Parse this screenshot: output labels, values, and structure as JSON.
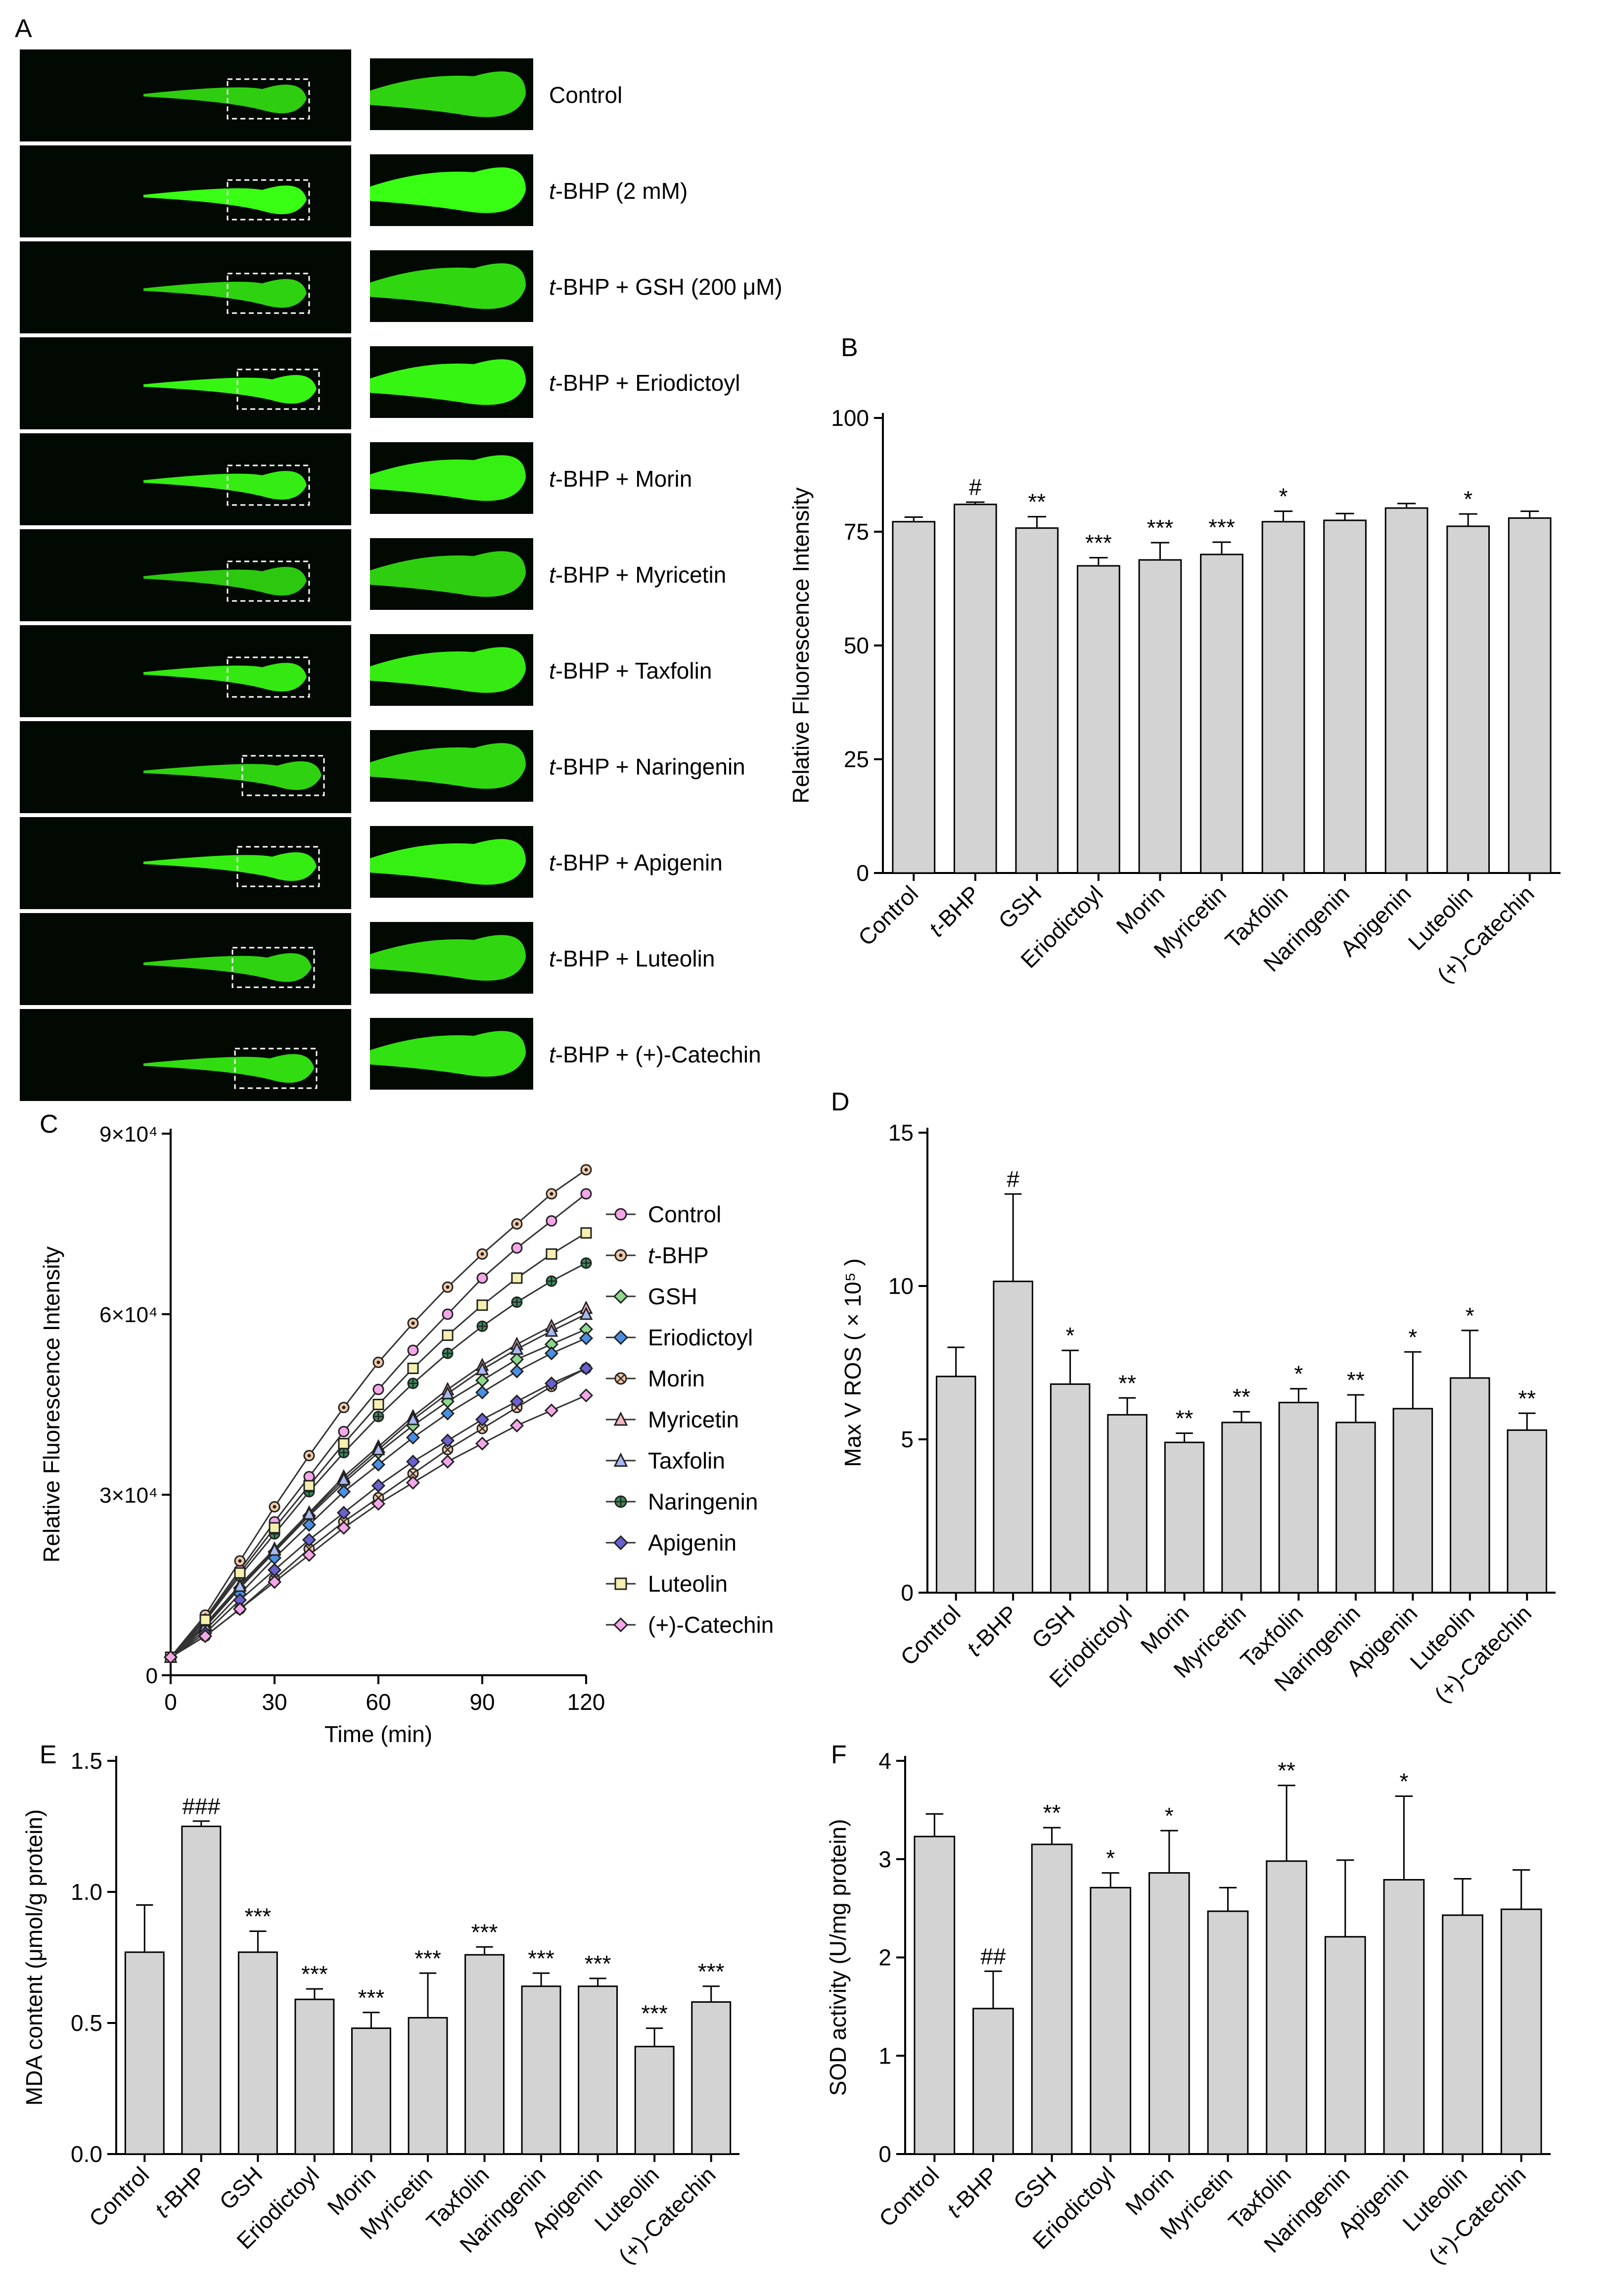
{
  "figure": {
    "panel_letters": [
      "A",
      "B",
      "C",
      "D",
      "E",
      "F"
    ],
    "fluorescence_color": "#39ff14",
    "bar_color": "#d3d3d3"
  },
  "panel_a": {
    "letter": "A",
    "labels": [
      {
        "prefix": "",
        "rest": "Control"
      },
      {
        "prefix": "t",
        "rest": "-BHP (2 mM)"
      },
      {
        "prefix": "t",
        "rest": "-BHP + GSH (200 μM)"
      },
      {
        "prefix": "t",
        "rest": "-BHP + Eriodictoyl"
      },
      {
        "prefix": "t",
        "rest": "-BHP + Morin"
      },
      {
        "prefix": "t",
        "rest": "-BHP + Myricetin"
      },
      {
        "prefix": "t",
        "rest": "-BHP + Taxfolin"
      },
      {
        "prefix": "t",
        "rest": "-BHP + Naringenin"
      },
      {
        "prefix": "t",
        "rest": "-BHP + Apigenin"
      },
      {
        "prefix": "t",
        "rest": "-BHP + Luteolin"
      },
      {
        "prefix": "t",
        "rest": "-BHP + (+)-Catechin"
      }
    ],
    "intensity": [
      0.55,
      1.0,
      0.6,
      0.9,
      0.85,
      0.5,
      0.8,
      0.6,
      0.85,
      0.6,
      0.7
    ]
  },
  "chart_data": [
    {
      "panel": "B",
      "type": "bar",
      "ylabel": "Relative Fluorescence Intensity",
      "ylim": [
        0,
        100
      ],
      "yticks": [
        0,
        25,
        50,
        75,
        100
      ],
      "categories": [
        "Control",
        "t-BHP",
        "GSH",
        "Eriodictoyl",
        "Morin",
        "Myricetin",
        "Taxfolin",
        "Naringenin",
        "Apigenin",
        "Luteolin",
        "(+)-Catechin"
      ],
      "values": [
        77.2,
        81.0,
        75.8,
        67.5,
        68.8,
        70.0,
        77.2,
        77.5,
        80.2,
        76.2,
        78.0
      ],
      "errors": [
        1.0,
        0.5,
        2.5,
        1.8,
        3.8,
        2.7,
        2.3,
        1.5,
        1.0,
        2.7,
        1.5
      ],
      "annotations": [
        "",
        "#",
        "**",
        "***",
        "***",
        "***",
        "*",
        "",
        "",
        "*",
        ""
      ]
    },
    {
      "panel": "C",
      "type": "line",
      "xlabel": "Time (min)",
      "ylabel": "Relative Fluorescence Intensity",
      "xlim": [
        0,
        120
      ],
      "ylim": [
        0,
        90000
      ],
      "xticks": [
        0,
        30,
        60,
        90,
        120
      ],
      "ytick_values": [
        0,
        30000,
        60000,
        90000
      ],
      "ytick_labels": [
        "0",
        "3×10⁴",
        "6×10⁴",
        "9×10⁴"
      ],
      "x": [
        0,
        10,
        20,
        30,
        40,
        50,
        60,
        70,
        80,
        90,
        100,
        110,
        120
      ],
      "series": [
        {
          "name": "Control",
          "italic_prefix": "",
          "rest": "Control",
          "marker": "circle",
          "fill": "#f4a6e8",
          "values": [
            3000,
            9500,
            17500,
            25500,
            33000,
            40500,
            47500,
            54000,
            60000,
            66000,
            71000,
            75500,
            80000
          ]
        },
        {
          "name": "t-BHP",
          "italic_prefix": "t",
          "rest": "-BHP",
          "marker": "circle-dot",
          "fill": "#f2c9a6",
          "values": [
            3000,
            10000,
            19000,
            28000,
            36500,
            44500,
            52000,
            58500,
            64500,
            70000,
            75000,
            80000,
            84000
          ]
        },
        {
          "name": "GSH",
          "italic_prefix": "",
          "rest": "GSH",
          "marker": "diamond",
          "fill": "#8cd98c",
          "values": [
            3000,
            8000,
            14500,
            20500,
            26500,
            32000,
            37000,
            41500,
            45500,
            49000,
            52500,
            55000,
            57500
          ]
        },
        {
          "name": "Eriodictoyl",
          "italic_prefix": "",
          "rest": "Eriodictoyl",
          "marker": "diamond",
          "fill": "#4a90e2",
          "values": [
            3000,
            7500,
            13500,
            19500,
            25000,
            30500,
            35000,
            39500,
            43500,
            47000,
            50500,
            53500,
            56000
          ]
        },
        {
          "name": "Morin",
          "italic_prefix": "",
          "rest": "Morin",
          "marker": "circle-x",
          "fill": "#f2c9a6",
          "values": [
            3000,
            6500,
            11000,
            16000,
            21000,
            25500,
            29500,
            33500,
            37500,
            41000,
            44500,
            48000,
            51000
          ]
        },
        {
          "name": "Myricetin",
          "italic_prefix": "",
          "rest": "Myricetin",
          "marker": "triangle",
          "fill": "#f4b8c0",
          "values": [
            3000,
            8500,
            15000,
            21000,
            27000,
            33000,
            38000,
            43000,
            47500,
            51500,
            55000,
            58000,
            61000
          ]
        },
        {
          "name": "Taxfolin",
          "italic_prefix": "",
          "rest": "Taxfolin",
          "marker": "triangle",
          "fill": "#a8b8f0",
          "values": [
            3000,
            8200,
            14800,
            20800,
            26800,
            32500,
            37500,
            42500,
            46800,
            50800,
            54200,
            57200,
            60000
          ]
        },
        {
          "name": "Naringenin",
          "italic_prefix": "",
          "rest": "Naringenin",
          "marker": "circle-plus",
          "fill": "#3a8a5a",
          "values": [
            3000,
            9000,
            16500,
            23500,
            30500,
            37000,
            43000,
            48500,
            53500,
            58000,
            62000,
            65500,
            68500
          ]
        },
        {
          "name": "Apigenin",
          "italic_prefix": "",
          "rest": "Apigenin",
          "marker": "diamond",
          "fill": "#6a60d0",
          "values": [
            3000,
            7000,
            12500,
            17500,
            22500,
            27000,
            31500,
            35500,
            39000,
            42500,
            45500,
            48500,
            51000
          ]
        },
        {
          "name": "Luteolin",
          "italic_prefix": "",
          "rest": "Luteolin",
          "marker": "square",
          "fill": "#f5f0b0",
          "values": [
            3000,
            9200,
            17000,
            24500,
            31500,
            38500,
            45000,
            51000,
            56500,
            61500,
            66000,
            70000,
            73500
          ]
        },
        {
          "name": "(+)-Catechin",
          "italic_prefix": "",
          "rest": "(+)-Catechin",
          "marker": "diamond",
          "fill": "#f4a6e8",
          "values": [
            3000,
            6500,
            11000,
            15500,
            20000,
            24500,
            28500,
            32000,
            35500,
            38500,
            41500,
            44000,
            46500
          ]
        }
      ]
    },
    {
      "panel": "D",
      "type": "bar",
      "ylabel": "Max V ROS ( × 10⁵ )",
      "ylim": [
        0,
        15
      ],
      "yticks": [
        0,
        5,
        10,
        15
      ],
      "categories": [
        "Control",
        "t-BHP",
        "GSH",
        "Eriodictoyl",
        "Morin",
        "Myricetin",
        "Taxfolin",
        "Naringenin",
        "Apigenin",
        "Luteolin",
        "(+)-Catechin"
      ],
      "values": [
        7.05,
        10.15,
        6.8,
        5.8,
        4.9,
        5.55,
        6.2,
        5.55,
        6.0,
        7.0,
        5.3
      ],
      "errors": [
        0.95,
        2.85,
        1.1,
        0.55,
        0.3,
        0.35,
        0.45,
        0.9,
        1.85,
        1.55,
        0.55
      ],
      "annotations": [
        "",
        "#",
        "*",
        "**",
        "**",
        "**",
        "*",
        "**",
        "*",
        "*",
        "**"
      ]
    },
    {
      "panel": "E",
      "type": "bar",
      "ylabel": "MDA content (μmol/g protein)",
      "ylim": [
        0,
        1.5
      ],
      "yticks": [
        0.0,
        0.5,
        1.0,
        1.5
      ],
      "ytick_labels": [
        "0.0",
        "0.5",
        "1.0",
        "1.5"
      ],
      "categories": [
        "Control",
        "t-BHP",
        "GSH",
        "Eriodictoyl",
        "Morin",
        "Myricetin",
        "Taxfolin",
        "Naringenin",
        "Apigenin",
        "Luteolin",
        "(+)-Catechin"
      ],
      "values": [
        0.77,
        1.25,
        0.77,
        0.59,
        0.48,
        0.52,
        0.76,
        0.64,
        0.64,
        0.41,
        0.58
      ],
      "errors": [
        0.18,
        0.02,
        0.08,
        0.04,
        0.06,
        0.17,
        0.03,
        0.05,
        0.03,
        0.07,
        0.06
      ],
      "annotations": [
        "",
        "###",
        "***",
        "***",
        "***",
        "***",
        "***",
        "***",
        "***",
        "***",
        "***"
      ]
    },
    {
      "panel": "F",
      "type": "bar",
      "ylabel": "SOD activity (U/mg protein)",
      "ylim": [
        0,
        4
      ],
      "yticks": [
        0,
        1,
        2,
        3,
        4
      ],
      "categories": [
        "Control",
        "t-BHP",
        "GSH",
        "Eriodictoyl",
        "Morin",
        "Myricetin",
        "Taxfolin",
        "Naringenin",
        "Apigenin",
        "Luteolin",
        "(+)-Catechin"
      ],
      "values": [
        3.23,
        1.48,
        3.15,
        2.71,
        2.86,
        2.47,
        2.98,
        2.21,
        2.79,
        2.43,
        2.49
      ],
      "errors": [
        0.23,
        0.38,
        0.17,
        0.15,
        0.43,
        0.24,
        0.77,
        0.78,
        0.85,
        0.37,
        0.4
      ],
      "annotations": [
        "",
        "##",
        "**",
        "*",
        "*",
        "",
        "**",
        "",
        "*",
        "",
        ""
      ]
    }
  ]
}
